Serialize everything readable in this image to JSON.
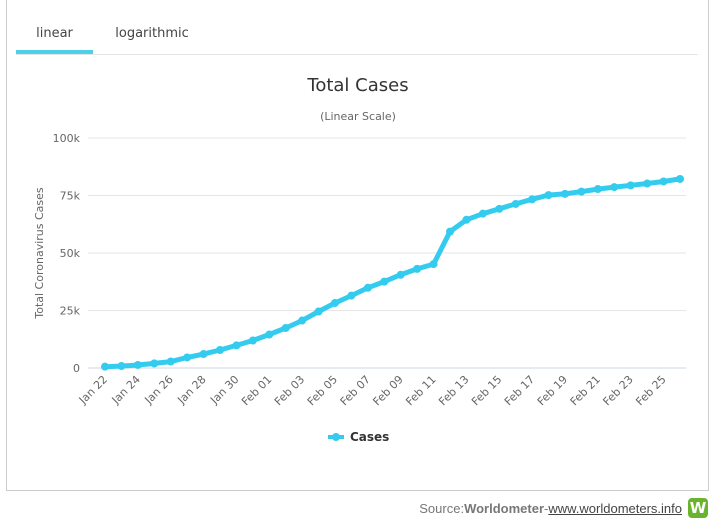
{
  "tabs": [
    {
      "label": "linear",
      "active": true
    },
    {
      "label": "logarithmic",
      "active": false
    }
  ],
  "chart_data": {
    "type": "line",
    "title": "Total Cases",
    "subtitle": "(Linear Scale)",
    "xlabel": "",
    "ylabel": "Total Coronavirus Cases",
    "ylim": [
      0,
      100000
    ],
    "yticks": [
      {
        "value": 0,
        "label": "0"
      },
      {
        "value": 25000,
        "label": "25k"
      },
      {
        "value": 50000,
        "label": "50k"
      },
      {
        "value": 75000,
        "label": "75k"
      },
      {
        "value": 100000,
        "label": "100k"
      }
    ],
    "categories": [
      "Jan 22",
      "Jan 23",
      "Jan 24",
      "Jan 25",
      "Jan 26",
      "Jan 27",
      "Jan 28",
      "Jan 29",
      "Jan 30",
      "Jan 31",
      "Feb 01",
      "Feb 02",
      "Feb 03",
      "Feb 04",
      "Feb 05",
      "Feb 06",
      "Feb 07",
      "Feb 08",
      "Feb 09",
      "Feb 10",
      "Feb 11",
      "Feb 12",
      "Feb 13",
      "Feb 14",
      "Feb 15",
      "Feb 16",
      "Feb 17",
      "Feb 18",
      "Feb 19",
      "Feb 20",
      "Feb 21",
      "Feb 22",
      "Feb 23",
      "Feb 24",
      "Feb 25",
      "Feb 26"
    ],
    "tick_labels": [
      "Jan 22",
      "Jan 24",
      "Jan 26",
      "Jan 28",
      "Jan 30",
      "Feb 01",
      "Feb 03",
      "Feb 05",
      "Feb 07",
      "Feb 09",
      "Feb 11",
      "Feb 13",
      "Feb 15",
      "Feb 17",
      "Feb 19",
      "Feb 21",
      "Feb 23",
      "Feb 25"
    ],
    "series": [
      {
        "name": "Cases",
        "color": "#33ccee",
        "values": [
          580,
          845,
          1320,
          2015,
          2800,
          4580,
          6060,
          7820,
          9830,
          11950,
          14550,
          17390,
          20630,
          24550,
          28280,
          31480,
          34880,
          37560,
          40550,
          43100,
          45170,
          59290,
          64440,
          67100,
          69200,
          71330,
          73330,
          75190,
          75720,
          76690,
          77800,
          78650,
          79400,
          80200,
          81100,
          82200
        ]
      }
    ],
    "legend": "bottom-center",
    "grid": true
  },
  "source": {
    "prefix": "Source: ",
    "name": "Worldometer",
    "separator": " - ",
    "link": "www.worldometers.info",
    "logo_letter": "W"
  }
}
